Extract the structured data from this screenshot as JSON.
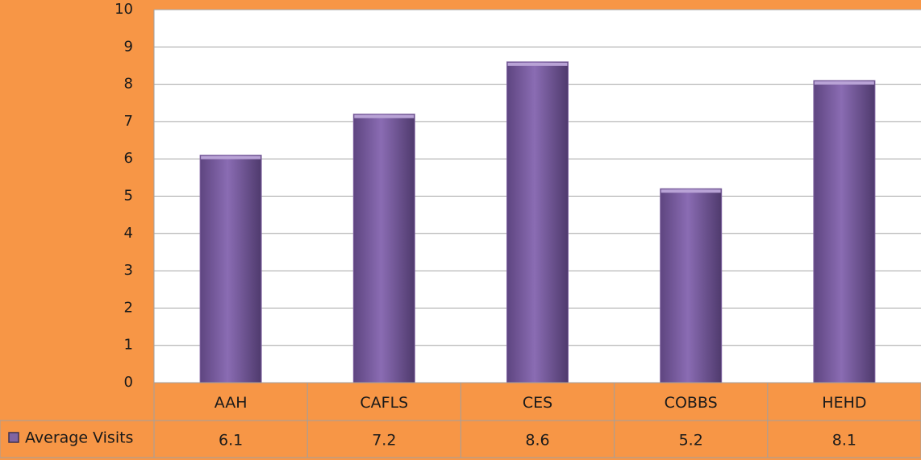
{
  "chart_data": {
    "type": "bar",
    "categories": [
      "AAH",
      "CAFLS",
      "CES",
      "COBBS",
      "HEHD"
    ],
    "series": [
      {
        "name": "Average Visits",
        "color": "#8064a2",
        "values": [
          6.1,
          7.2,
          8.6,
          5.2,
          8.1
        ]
      }
    ],
    "ylim": [
      0,
      10
    ],
    "yticks": [
      0,
      1,
      2,
      3,
      4,
      5,
      6,
      7,
      8,
      9,
      10
    ],
    "grid": true,
    "legend": "bottom-left",
    "data_table": true
  }
}
